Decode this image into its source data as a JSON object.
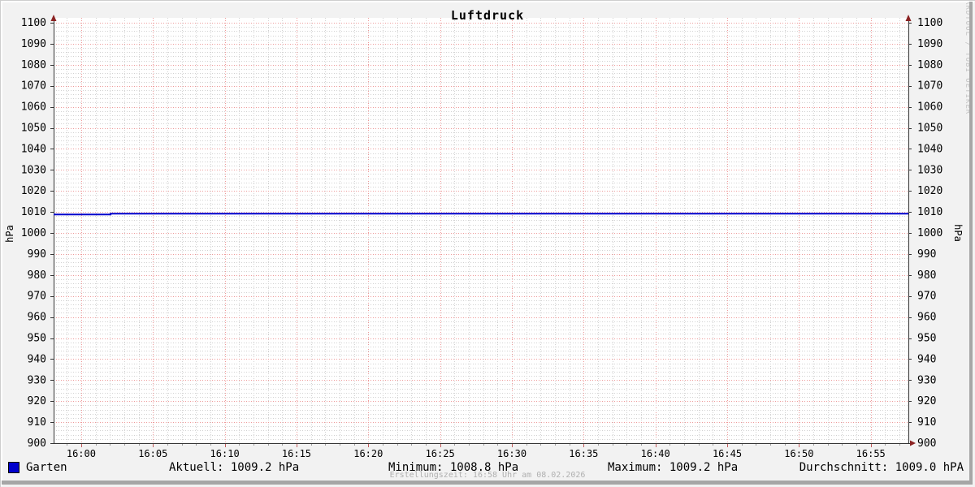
{
  "window": {
    "background": "#f2f2f2"
  },
  "header": {
    "title": "Luftdruck"
  },
  "watermark": {
    "text": "RRDTOOL / TOBI OETIKER"
  },
  "axes": {
    "left_label": "hPa",
    "right_label": "hPa"
  },
  "legend": {
    "series": {
      "label": "Garten",
      "swatch_color": "#0000cc"
    },
    "aktuell": "Aktuell: 1009.2 hPa",
    "minimum": "Minimum: 1008.8 hPa",
    "maximum": "Maximum: 1009.2 hPa",
    "durchschnitt": "Durchschnitt: 1009.0 hPA"
  },
  "footer": {
    "text": "Erstellungszeit: 16:58 Uhr am 08.02.2026"
  },
  "chart_data": {
    "type": "line",
    "title": "Luftdruck",
    "xlabel": "",
    "ylabel": "hPa",
    "ylim": [
      900,
      1100
    ],
    "y_tick_step": 10,
    "y_minor_step": 2,
    "x_tick_labels": [
      "16:00",
      "16:05",
      "16:10",
      "16:15",
      "16:20",
      "16:25",
      "16:30",
      "16:35",
      "16:40",
      "16:45",
      "16:50",
      "16:55"
    ],
    "x_tick_step_minutes": 5,
    "x_minor_step_minutes": 1,
    "x_window_minutes": [
      -1.92,
      57.62
    ],
    "grid": {
      "canvas": "#ffffff",
      "minor_color": "#d2d2d2",
      "major_color": "#ee9a9a",
      "axis_color": "#333333",
      "arrow_color": "#8b2323",
      "x_major_tick_color": "#c25c5c",
      "minor_tick_color": "#9a9a9a"
    },
    "legend_position": "bottom",
    "series": [
      {
        "name": "Garten",
        "color": "#0000cc",
        "unit": "hPa",
        "points": [
          [
            -1.92,
            1008.8
          ],
          [
            2.05,
            1008.8
          ],
          [
            2.05,
            1009.2
          ],
          [
            57.62,
            1009.2
          ]
        ]
      }
    ],
    "stats": {
      "current": 1009.2,
      "min": 1008.8,
      "max": 1009.2,
      "avg": 1009.0
    }
  }
}
